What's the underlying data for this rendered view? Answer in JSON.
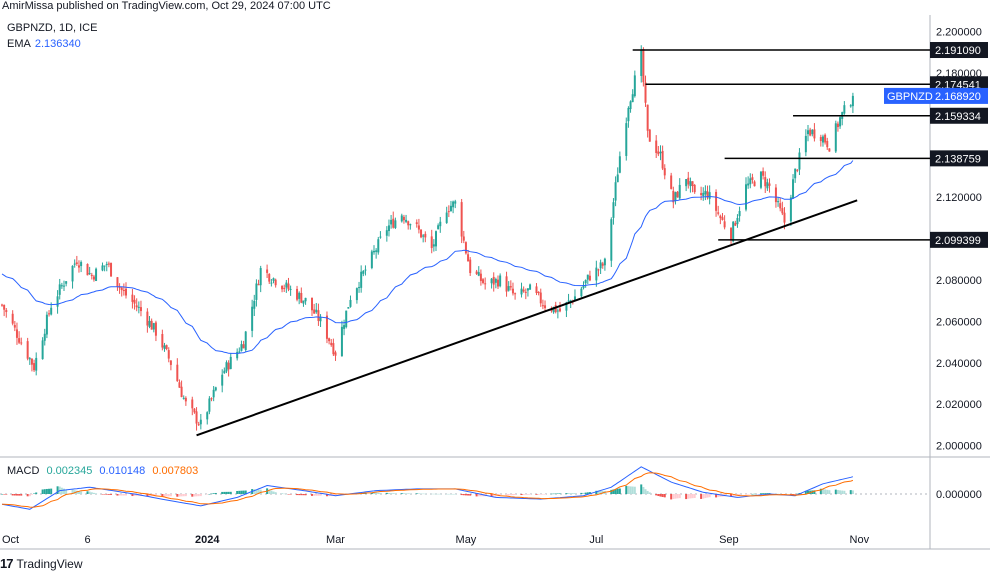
{
  "header": {
    "published_by": "AmirMissa published on TradingView.com, Oct 29, 2024 07:00 UTC"
  },
  "legend": {
    "symbol_line": "GBPNZD, 1D, ICE",
    "ema_label": "EMA",
    "ema_value": "2.136340"
  },
  "macd_legend": {
    "label": "MACD",
    "histogram": "0.002345",
    "macd": "0.010148",
    "signal": "0.007803"
  },
  "footer": {
    "logo": "17",
    "brand": "TradingView"
  },
  "colors": {
    "bull": "#26a69a",
    "bear": "#ef5350",
    "ema": "#2962ff",
    "macd_line": "#2962ff",
    "signal_line": "#ff6d00",
    "hist_pos_strong": "#26a69a",
    "hist_pos_weak": "#b2dfdb",
    "hist_neg_strong": "#ef5350",
    "hist_neg_weak": "#ffcdd2",
    "tag_dark": "#131722",
    "tag_blue": "#2962ff",
    "text": "#131722"
  },
  "chart_data": [
    {
      "type": "candlestick",
      "symbol": "GBPNZD",
      "timeframe": "1D",
      "x_ticks": [
        "Oct",
        "6",
        "2024",
        "Mar",
        "May",
        "Jul",
        "Sep",
        "Nov"
      ],
      "y_ticks": [
        "2.200000",
        "2.180000",
        "2.160000",
        "2.140000",
        "2.120000",
        "2.100000",
        "2.080000",
        "2.060000",
        "2.040000",
        "2.020000",
        "2.000000"
      ],
      "ylim": [
        1.995,
        2.208
      ],
      "price_anchors": [
        {
          "date": "2023-09-27",
          "price": 2.068
        },
        {
          "date": "2023-10-02",
          "price": 2.058
        },
        {
          "date": "2023-10-12",
          "price": 2.038
        },
        {
          "date": "2023-10-20",
          "price": 2.068
        },
        {
          "date": "2023-11-01",
          "price": 2.09
        },
        {
          "date": "2023-11-08",
          "price": 2.082
        },
        {
          "date": "2023-11-15",
          "price": 2.088
        },
        {
          "date": "2023-11-22",
          "price": 2.075
        },
        {
          "date": "2023-12-01",
          "price": 2.065
        },
        {
          "date": "2023-12-08",
          "price": 2.055
        },
        {
          "date": "2023-12-15",
          "price": 2.04
        },
        {
          "date": "2023-12-22",
          "price": 2.02
        },
        {
          "date": "2023-12-29",
          "price": 2.01
        },
        {
          "date": "2024-01-08",
          "price": 2.035
        },
        {
          "date": "2024-01-18",
          "price": 2.05
        },
        {
          "date": "2024-01-26",
          "price": 2.085
        },
        {
          "date": "2024-02-02",
          "price": 2.08
        },
        {
          "date": "2024-02-09",
          "price": 2.075
        },
        {
          "date": "2024-02-16",
          "price": 2.07
        },
        {
          "date": "2024-02-23",
          "price": 2.06
        },
        {
          "date": "2024-03-01",
          "price": 2.045
        },
        {
          "date": "2024-03-08",
          "price": 2.072
        },
        {
          "date": "2024-03-15",
          "price": 2.085
        },
        {
          "date": "2024-03-25",
          "price": 2.105
        },
        {
          "date": "2024-04-01",
          "price": 2.112
        },
        {
          "date": "2024-04-08",
          "price": 2.105
        },
        {
          "date": "2024-04-15",
          "price": 2.095
        },
        {
          "date": "2024-04-22",
          "price": 2.115
        },
        {
          "date": "2024-04-26",
          "price": 2.117
        },
        {
          "date": "2024-05-03",
          "price": 2.085
        },
        {
          "date": "2024-05-10",
          "price": 2.078
        },
        {
          "date": "2024-05-17",
          "price": 2.08
        },
        {
          "date": "2024-05-24",
          "price": 2.072
        },
        {
          "date": "2024-05-31",
          "price": 2.075
        },
        {
          "date": "2024-06-07",
          "price": 2.068
        },
        {
          "date": "2024-06-14",
          "price": 2.065
        },
        {
          "date": "2024-06-21",
          "price": 2.072
        },
        {
          "date": "2024-06-28",
          "price": 2.082
        },
        {
          "date": "2024-07-05",
          "price": 2.088
        },
        {
          "date": "2024-07-12",
          "price": 2.14
        },
        {
          "date": "2024-07-16",
          "price": 2.165
        },
        {
          "date": "2024-07-22",
          "price": 2.188
        },
        {
          "date": "2024-07-25",
          "price": 2.15
        },
        {
          "date": "2024-07-31",
          "price": 2.14
        },
        {
          "date": "2024-08-06",
          "price": 2.118
        },
        {
          "date": "2024-08-12",
          "price": 2.13
        },
        {
          "date": "2024-08-16",
          "price": 2.12
        },
        {
          "date": "2024-08-22",
          "price": 2.122
        },
        {
          "date": "2024-08-28",
          "price": 2.11
        },
        {
          "date": "2024-09-02",
          "price": 2.102
        },
        {
          "date": "2024-09-09",
          "price": 2.125
        },
        {
          "date": "2024-09-16",
          "price": 2.13
        },
        {
          "date": "2024-09-20",
          "price": 2.125
        },
        {
          "date": "2024-09-27",
          "price": 2.108
        },
        {
          "date": "2024-10-02",
          "price": 2.132
        },
        {
          "date": "2024-10-08",
          "price": 2.152
        },
        {
          "date": "2024-10-14",
          "price": 2.15
        },
        {
          "date": "2024-10-18",
          "price": 2.145
        },
        {
          "date": "2024-10-23",
          "price": 2.158
        },
        {
          "date": "2024-10-29",
          "price": 2.1689
        }
      ],
      "ema": {
        "label": "EMA",
        "value": 2.13634
      },
      "last_price_label": {
        "name": "GBPNZD",
        "value": "2.168920",
        "price": 2.16892
      },
      "price_levels": [
        {
          "price": 2.19109,
          "label": "2.191090",
          "from": "2024-07-18"
        },
        {
          "price": 2.174541,
          "label": "2.174541",
          "from": "2024-07-24"
        },
        {
          "price": 2.159334,
          "label": "2.159334",
          "from": "2024-10-01"
        },
        {
          "price": 2.138759,
          "label": "2.138759",
          "from": "2024-08-30"
        },
        {
          "price": 2.099399,
          "label": "2.099399",
          "from": "2024-08-27"
        }
      ],
      "trendline": [
        {
          "date": "2023-12-27",
          "price": 2.005
        },
        {
          "date": "2024-10-31",
          "price": 2.1185
        }
      ]
    },
    {
      "type": "macd",
      "label": "MACD",
      "histogram": 0.002345,
      "macd": 0.010148,
      "signal": 0.007803,
      "y_ticks": [
        "0.000000"
      ],
      "macd_anchors": [
        {
          "date": "2023-09-27",
          "v": -0.006
        },
        {
          "date": "2023-10-10",
          "v": -0.009
        },
        {
          "date": "2023-10-24",
          "v": 0.002
        },
        {
          "date": "2023-11-07",
          "v": 0.004
        },
        {
          "date": "2023-11-28",
          "v": 0.0
        },
        {
          "date": "2023-12-15",
          "v": -0.004
        },
        {
          "date": "2023-12-29",
          "v": -0.007
        },
        {
          "date": "2024-01-15",
          "v": -0.002
        },
        {
          "date": "2024-01-29",
          "v": 0.005
        },
        {
          "date": "2024-02-15",
          "v": 0.002
        },
        {
          "date": "2024-03-01",
          "v": -0.001
        },
        {
          "date": "2024-03-20",
          "v": 0.002
        },
        {
          "date": "2024-04-08",
          "v": 0.003
        },
        {
          "date": "2024-04-26",
          "v": 0.003
        },
        {
          "date": "2024-05-15",
          "v": -0.002
        },
        {
          "date": "2024-06-05",
          "v": -0.003
        },
        {
          "date": "2024-06-25",
          "v": -0.001
        },
        {
          "date": "2024-07-08",
          "v": 0.004
        },
        {
          "date": "2024-07-22",
          "v": 0.016
        },
        {
          "date": "2024-08-05",
          "v": 0.007
        },
        {
          "date": "2024-08-20",
          "v": 0.001
        },
        {
          "date": "2024-09-05",
          "v": -0.002
        },
        {
          "date": "2024-09-20",
          "v": 0.0
        },
        {
          "date": "2024-10-02",
          "v": -0.001
        },
        {
          "date": "2024-10-15",
          "v": 0.006
        },
        {
          "date": "2024-10-29",
          "v": 0.010148
        }
      ]
    }
  ]
}
